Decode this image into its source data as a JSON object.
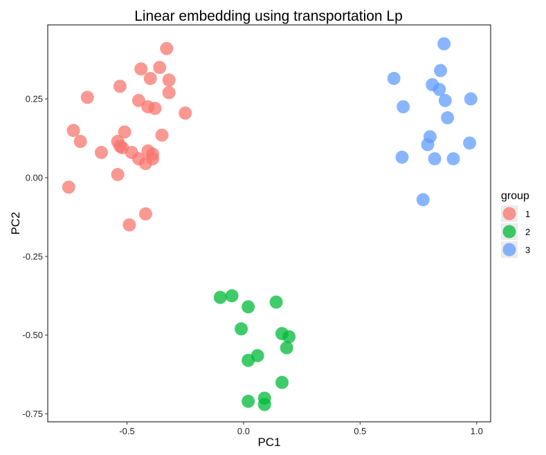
{
  "chart_data": {
    "type": "scatter",
    "title": "Linear embedding using transportation Lp",
    "xlabel": "PC1",
    "ylabel": "PC2",
    "xlim": [
      -0.84,
      1.06
    ],
    "ylim": [
      -0.775,
      0.485
    ],
    "x_ticks": [
      -0.5,
      0.0,
      0.5,
      1.0
    ],
    "x_tick_labels": [
      "-0.5",
      "0.0",
      "0.5",
      "1.0"
    ],
    "y_ticks": [
      0.25,
      0.0,
      -0.25,
      -0.5,
      -0.75
    ],
    "y_tick_labels": [
      "0.25",
      "0.00",
      "-0.25",
      "-0.50",
      "-0.75"
    ],
    "grid": false,
    "legend": {
      "title": "group",
      "position": "right"
    },
    "series": [
      {
        "name": "1",
        "color": "#F8766D",
        "points": [
          [
            -0.75,
            -0.03
          ],
          [
            -0.73,
            0.15
          ],
          [
            -0.7,
            0.115
          ],
          [
            -0.67,
            0.255
          ],
          [
            -0.61,
            0.08
          ],
          [
            -0.54,
            0.115
          ],
          [
            -0.54,
            0.01
          ],
          [
            -0.53,
            0.29
          ],
          [
            -0.53,
            0.1
          ],
          [
            -0.52,
            0.095
          ],
          [
            -0.51,
            0.145
          ],
          [
            -0.49,
            -0.15
          ],
          [
            -0.48,
            0.08
          ],
          [
            -0.45,
            0.245
          ],
          [
            -0.45,
            0.06
          ],
          [
            -0.44,
            0.345
          ],
          [
            -0.42,
            -0.115
          ],
          [
            -0.42,
            0.045
          ],
          [
            -0.41,
            0.225
          ],
          [
            -0.41,
            0.085
          ],
          [
            -0.4,
            0.315
          ],
          [
            -0.39,
            0.075
          ],
          [
            -0.39,
            0.06
          ],
          [
            -0.38,
            0.22
          ],
          [
            -0.36,
            0.35
          ],
          [
            -0.35,
            0.135
          ],
          [
            -0.33,
            0.41
          ],
          [
            -0.32,
            0.31
          ],
          [
            -0.32,
            0.27
          ],
          [
            -0.25,
            0.205
          ]
        ]
      },
      {
        "name": "2",
        "color": "#00BA38",
        "points": [
          [
            -0.1,
            -0.38
          ],
          [
            -0.05,
            -0.375
          ],
          [
            -0.01,
            -0.48
          ],
          [
            0.02,
            -0.41
          ],
          [
            0.02,
            -0.58
          ],
          [
            0.02,
            -0.71
          ],
          [
            0.06,
            -0.565
          ],
          [
            0.09,
            -0.7
          ],
          [
            0.09,
            -0.72
          ],
          [
            0.14,
            -0.395
          ],
          [
            0.165,
            -0.495
          ],
          [
            0.165,
            -0.65
          ],
          [
            0.185,
            -0.54
          ],
          [
            0.195,
            -0.505
          ]
        ]
      },
      {
        "name": "3",
        "color": "#619CFF",
        "points": [
          [
            0.645,
            0.315
          ],
          [
            0.68,
            0.065
          ],
          [
            0.685,
            0.225
          ],
          [
            0.77,
            -0.07
          ],
          [
            0.79,
            0.105
          ],
          [
            0.8,
            0.13
          ],
          [
            0.81,
            0.295
          ],
          [
            0.82,
            0.06
          ],
          [
            0.84,
            0.28
          ],
          [
            0.845,
            0.34
          ],
          [
            0.86,
            0.425
          ],
          [
            0.865,
            0.245
          ],
          [
            0.875,
            0.19
          ],
          [
            0.9,
            0.06
          ],
          [
            0.97,
            0.11
          ],
          [
            0.975,
            0.25
          ]
        ]
      }
    ]
  }
}
